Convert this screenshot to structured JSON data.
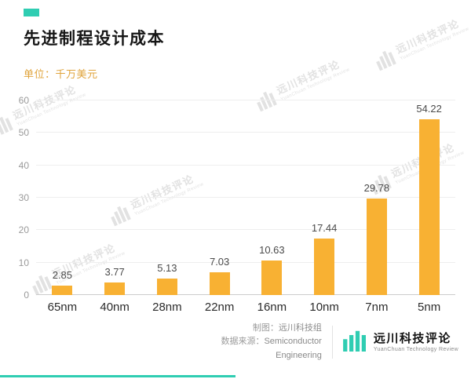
{
  "colors": {
    "teal": "#2FCDB2",
    "bar_orange": "#F8B133",
    "unit_text": "#E0A43C",
    "watermark": "#e2e2e2"
  },
  "header": {
    "title": "先进制程设计成本",
    "unit_label": "单位：千万美元"
  },
  "chart_data": {
    "type": "bar",
    "categories": [
      "65nm",
      "40nm",
      "28nm",
      "22nm",
      "16nm",
      "10nm",
      "7nm",
      "5nm"
    ],
    "values": [
      2.85,
      3.77,
      5.13,
      7.03,
      10.63,
      17.44,
      29.78,
      54.22
    ],
    "title": "先进制程设计成本",
    "xlabel": "",
    "ylabel": "单位：千万美元",
    "ylim": [
      0,
      60
    ],
    "yticks": [
      0,
      10,
      20,
      30,
      40,
      50,
      60
    ],
    "grid": true,
    "legend": "none",
    "bar_color": "#F8B133"
  },
  "watermark": {
    "text": "远川科技评论",
    "subtext": "YuanChuan Technology Review"
  },
  "footer": {
    "credit_label": "制图：",
    "credit_value": "远川科技组",
    "source_label": "数据来源：",
    "source_value_line1": "Semiconductor",
    "source_value_line2": "Engineering",
    "logo_name": "远川科技评论",
    "logo_subtitle": "YuanChuan Technology Review"
  }
}
